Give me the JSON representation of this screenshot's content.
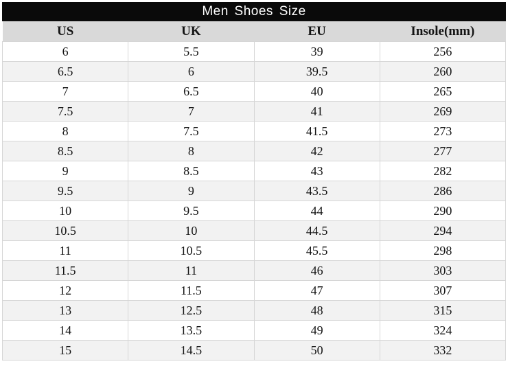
{
  "chart_data": {
    "type": "table",
    "title": "Men Shoes Size",
    "columns": [
      "US",
      "UK",
      "EU",
      "Insole(mm)"
    ],
    "rows": [
      [
        "6",
        "5.5",
        "39",
        "256"
      ],
      [
        "6.5",
        "6",
        "39.5",
        "260"
      ],
      [
        "7",
        "6.5",
        "40",
        "265"
      ],
      [
        "7.5",
        "7",
        "41",
        "269"
      ],
      [
        "8",
        "7.5",
        "41.5",
        "273"
      ],
      [
        "8.5",
        "8",
        "42",
        "277"
      ],
      [
        "9",
        "8.5",
        "43",
        "282"
      ],
      [
        "9.5",
        "9",
        "43.5",
        "286"
      ],
      [
        "10",
        "9.5",
        "44",
        "290"
      ],
      [
        "10.5",
        "10",
        "44.5",
        "294"
      ],
      [
        "11",
        "10.5",
        "45.5",
        "298"
      ],
      [
        "11.5",
        "11",
        "46",
        "303"
      ],
      [
        "12",
        "11.5",
        "47",
        "307"
      ],
      [
        "13",
        "12.5",
        "48",
        "315"
      ],
      [
        "14",
        "13.5",
        "49",
        "324"
      ],
      [
        "15",
        "14.5",
        "50",
        "332"
      ]
    ],
    "layout": {
      "header_position": "top",
      "row_striping": "alternate",
      "grid": true
    }
  },
  "colors": {
    "title_bg": "#0a0a0a",
    "title_text": "#ffffff",
    "header_bg": "#d9d9d9",
    "row_bg": "#ffffff",
    "row_alt_bg": "#f2f2f2",
    "border": "#d6d6d6",
    "text": "#141414"
  }
}
